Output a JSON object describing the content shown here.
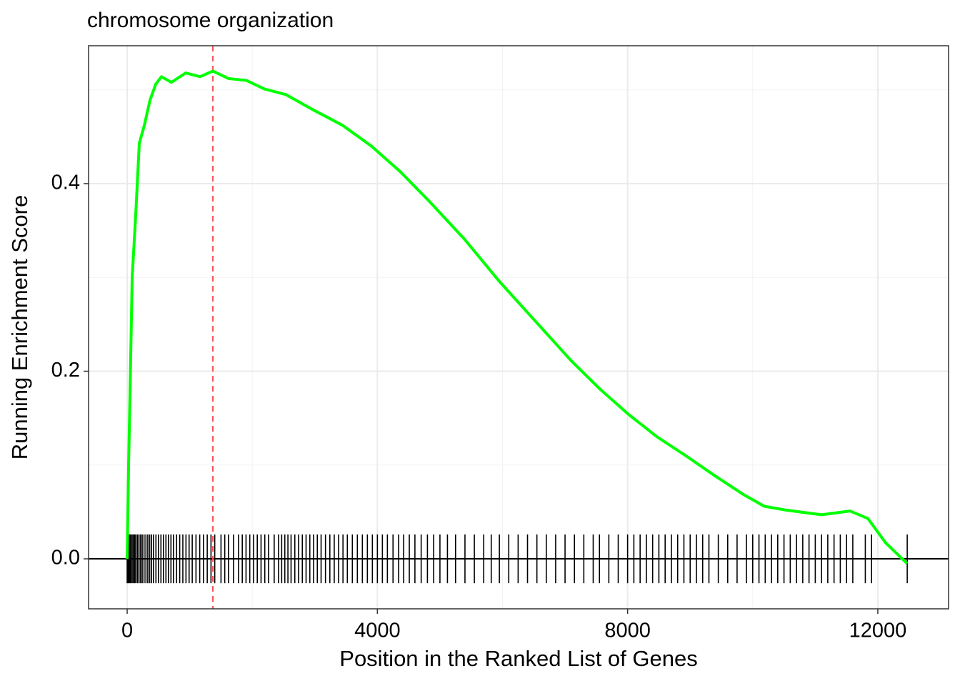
{
  "chart_data": {
    "type": "line",
    "title": "chromosome organization",
    "x_label": "Position in the Ranked List of Genes",
    "y_label": "Running Enrichment Score",
    "xlim": [
      -617,
      13131
    ],
    "ylim": [
      -0.0533,
      0.547
    ],
    "xticks": [
      0,
      4000,
      8000,
      12000
    ],
    "yticks": [
      {
        "value": 0,
        "label": "0.0"
      },
      {
        "value": 0.2,
        "label": "0.2"
      },
      {
        "value": 0.4,
        "label": "0.4"
      }
    ],
    "x_minor_grid": [
      2000,
      6000,
      10000
    ],
    "y_minor_grid": [
      0.1,
      0.3,
      0.5
    ],
    "grid": true,
    "hline": 0,
    "peak_x": 1370,
    "peak_color": "#f8535b",
    "hit_color": "#000000",
    "series": [
      {
        "color": "#00ff00",
        "x": [
          0,
          23,
          46,
          80,
          137,
          194,
          274,
          365,
          457,
          548,
          708,
          936,
          1165,
          1370,
          1621,
          1907,
          2192,
          2535,
          2992,
          3448,
          3905,
          4362,
          4818,
          5389,
          5960,
          6531,
          7101,
          7558,
          8015,
          8472,
          8929,
          9385,
          9842,
          10185,
          10527,
          11098,
          11555,
          11841,
          12126,
          12469
        ],
        "values": [
          0,
          0.1,
          0.177,
          0.3,
          0.367,
          0.443,
          0.462,
          0.489,
          0.506,
          0.514,
          0.508,
          0.518,
          0.514,
          0.52,
          0.512,
          0.51,
          0.501,
          0.495,
          0.478,
          0.462,
          0.44,
          0.413,
          0.382,
          0.341,
          0.295,
          0.253,
          0.211,
          0.181,
          0.154,
          0.13,
          0.11,
          0.089,
          0.069,
          0.056,
          0.052,
          0.047,
          0.051,
          0.043,
          0.017,
          -0.005
        ]
      }
    ],
    "hits": [
      0,
      15,
      30,
      45,
      60,
      80,
      100,
      120,
      140,
      165,
      190,
      215,
      240,
      270,
      300,
      330,
      360,
      390,
      420,
      460,
      500,
      540,
      580,
      620,
      660,
      700,
      740,
      790,
      840,
      890,
      940,
      990,
      1040,
      1100,
      1160,
      1220,
      1280,
      1340,
      1400,
      1500,
      1560,
      1620,
      1700,
      1780,
      1840,
      1900,
      1960,
      2020,
      2080,
      2140,
      2200,
      2260,
      2350,
      2420,
      2470,
      2520,
      2570,
      2620,
      2680,
      2740,
      2800,
      2860,
      2920,
      2980,
      3040,
      3100,
      3170,
      3240,
      3310,
      3380,
      3450,
      3520,
      3600,
      3680,
      3760,
      3840,
      3920,
      4000,
      4080,
      4160,
      4250,
      4340,
      4420,
      4510,
      4600,
      4700,
      4800,
      4900,
      5000,
      5120,
      5250,
      5400,
      5550,
      5700,
      5820,
      5950,
      6100,
      6250,
      6400,
      6550,
      6700,
      6850,
      7000,
      7150,
      7300,
      7450,
      7550,
      7700,
      7850,
      8000,
      8100,
      8200,
      8300,
      8400,
      8500,
      8600,
      8700,
      8800,
      8900,
      9000,
      9100,
      9200,
      9300,
      9450,
      9600,
      9750,
      9900,
      10000,
      10100,
      10200,
      10300,
      10400,
      10500,
      10600,
      10700,
      10800,
      10900,
      11000,
      11100,
      11200,
      11300,
      11400,
      11500,
      11600,
      11800,
      11900,
      12470
    ]
  }
}
